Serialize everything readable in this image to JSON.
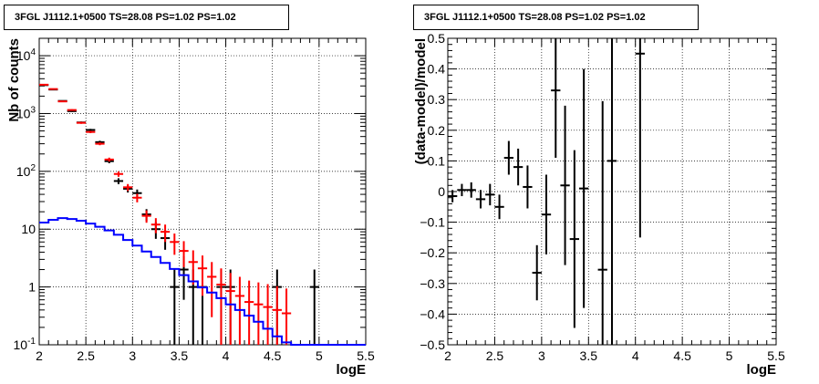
{
  "chart_data": [
    {
      "type": "line",
      "title": "3FGL J1112.1+0500 TS=28.08 PS=1.02 PS=1.02",
      "xlabel": "logE",
      "ylabel": "Nb of counts",
      "xlim": [
        2,
        5.5
      ],
      "ylim": [
        0.1,
        20000
      ],
      "yscale": "log",
      "grid": true,
      "x_ticks": [
        "2",
        "2.5",
        "3",
        "3.5",
        "4",
        "4.5",
        "5",
        "5.5"
      ],
      "y_ticks": [
        "10^-1",
        "1",
        "10",
        "10^2",
        "10^3",
        "10^4"
      ],
      "series": [
        {
          "name": "",
          "color": "#000000",
          "marker": "errorbar",
          "x": [
            2.05,
            2.15,
            2.25,
            2.35,
            2.45,
            2.55,
            2.65,
            2.75,
            2.85,
            2.95,
            3.05,
            3.15,
            3.25,
            3.35,
            3.45,
            3.55,
            3.65,
            3.75,
            3.85,
            3.95,
            4.05,
            4.15,
            4.25,
            4.35,
            4.55,
            4.95
          ],
          "y": [
            3100,
            2600,
            1650,
            1100,
            700,
            520,
            320,
            150,
            68,
            50,
            42,
            18,
            10,
            7,
            1,
            2,
            1,
            1,
            0,
            1,
            1,
            0,
            0,
            0,
            1,
            1
          ],
          "yerr": [
            55,
            50,
            40,
            33,
            26,
            23,
            18,
            12,
            8,
            7,
            6.5,
            4.2,
            3.2,
            2.6,
            1,
            1.4,
            1,
            1,
            0,
            1,
            1,
            0,
            0,
            0,
            1,
            1
          ]
        },
        {
          "name": "",
          "color": "#ff0000",
          "marker": "errorbar",
          "x": [
            2.05,
            2.15,
            2.25,
            2.35,
            2.45,
            2.55,
            2.65,
            2.75,
            2.85,
            2.95,
            3.05,
            3.15,
            3.25,
            3.35,
            3.45,
            3.55,
            3.65,
            3.75,
            3.85,
            3.95,
            4.05,
            4.15,
            4.25,
            4.35,
            4.45,
            4.55,
            4.65
          ],
          "y": [
            3150,
            2650,
            1620,
            1150,
            690,
            480,
            300,
            160,
            90,
            53,
            35,
            17,
            12,
            9,
            6,
            4.2,
            2.7,
            2.1,
            1.5,
            1.1,
            0.85,
            0.7,
            0.55,
            0.5,
            0.45,
            0.4,
            0.35
          ],
          "yerr": [
            56,
            51,
            40,
            34,
            26,
            22,
            17,
            12.6,
            9.5,
            7.3,
            5.9,
            4.1,
            3.5,
            3,
            2.4,
            2,
            1.6,
            1.4,
            1.2,
            1,
            0.9,
            0.8,
            0.74,
            0.7,
            0.67,
            0.63,
            0.59
          ]
        },
        {
          "name": "",
          "color": "#0000ff",
          "marker": "step",
          "x": [
            2.05,
            2.15,
            2.25,
            2.35,
            2.45,
            2.55,
            2.65,
            2.75,
            2.85,
            2.95,
            3.05,
            3.15,
            3.25,
            3.35,
            3.45,
            3.55,
            3.65,
            3.75,
            3.85,
            3.95,
            4.05,
            4.15,
            4.25,
            4.35,
            4.45,
            4.55,
            4.65,
            4.75,
            4.85,
            4.95,
            5.05,
            5.15,
            5.25,
            5.35,
            5.45
          ],
          "y": [
            13,
            14.5,
            15.5,
            15,
            14,
            12.5,
            11,
            9.5,
            8,
            6.5,
            5.2,
            4.1,
            3.3,
            2.6,
            2.05,
            1.6,
            1.25,
            0.98,
            0.8,
            0.64,
            0.5,
            0.4,
            0.32,
            0.25,
            0.19,
            0.14,
            0.11,
            0.1,
            0.1,
            0.1,
            0.1,
            0.1,
            0.1,
            0.1,
            0.1
          ]
        }
      ]
    },
    {
      "type": "scatter",
      "title": "3FGL J1112.1+0500 TS=28.08 PS=1.02 PS=1.02",
      "xlabel": "logE",
      "ylabel": "(data-model)/model",
      "xlim": [
        2,
        5.5
      ],
      "ylim": [
        -0.5,
        0.5
      ],
      "grid": true,
      "x_ticks": [
        "2",
        "2.5",
        "3",
        "3.5",
        "4",
        "4.5",
        "5",
        "5.5"
      ],
      "y_ticks": [
        "−0.5",
        "−0.4",
        "−0.3",
        "−0.2",
        "−0.1",
        "0",
        "0.1",
        "0.2",
        "0.3",
        "0.4",
        "0.5"
      ],
      "series": [
        {
          "name": "",
          "color": "#000000",
          "marker": "errorbar",
          "x": [
            2.05,
            2.15,
            2.25,
            2.35,
            2.45,
            2.55,
            2.65,
            2.75,
            2.85,
            2.95,
            3.05,
            3.15,
            3.25,
            3.35,
            3.45,
            3.65,
            3.75,
            4.05
          ],
          "y": [
            -0.015,
            0.005,
            0.005,
            -0.025,
            -0.01,
            -0.05,
            0.11,
            0.08,
            0.015,
            -0.265,
            -0.075,
            0.33,
            0.02,
            -0.155,
            0.01,
            -0.255,
            0.1,
            0.45
          ],
          "yerr": [
            0.02,
            0.02,
            0.025,
            0.03,
            0.035,
            0.04,
            0.055,
            0.06,
            0.07,
            0.09,
            0.13,
            0.22,
            0.26,
            0.29,
            0.39,
            0.55,
            0.6,
            0.6
          ]
        }
      ]
    }
  ]
}
